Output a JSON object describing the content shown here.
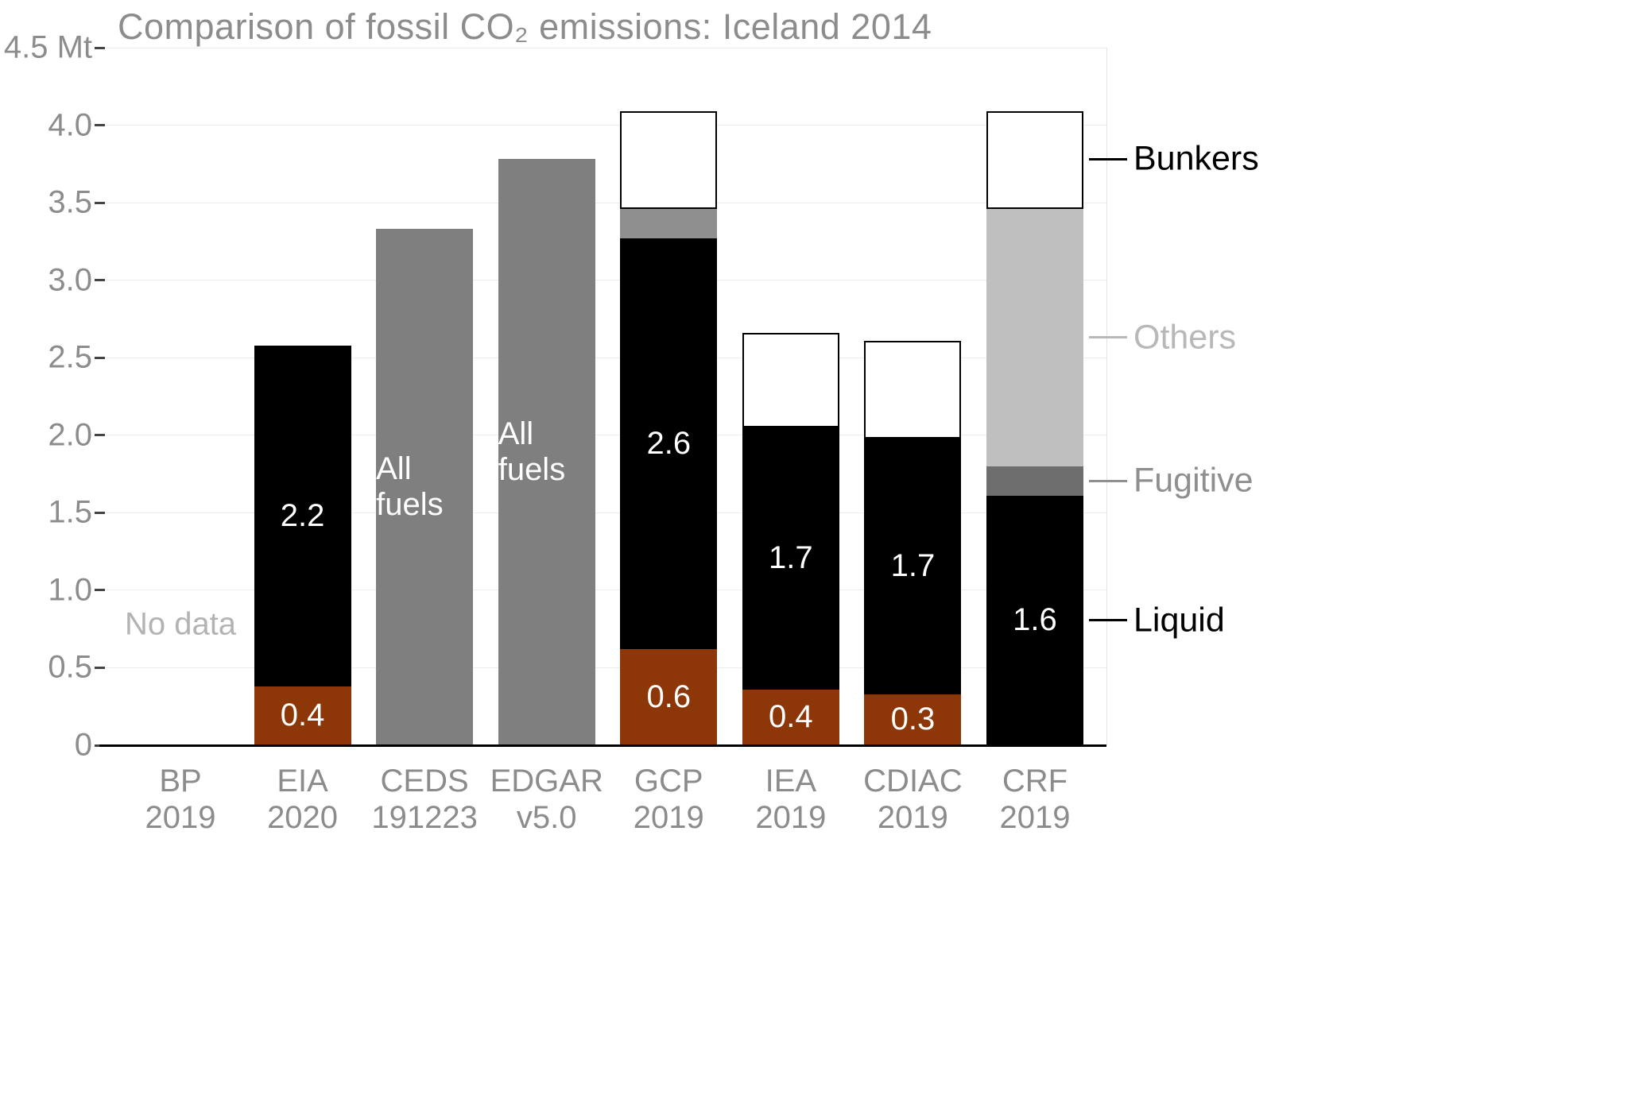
{
  "chart_data": {
    "type": "bar",
    "stacked": true,
    "title": "Comparison of fossil CO₂ emissions: Iceland 2014",
    "unit": "Mt",
    "ylim": [
      0,
      4.5
    ],
    "grid": true,
    "yticks": [
      {
        "value": 0,
        "label": "0"
      },
      {
        "value": 0.5,
        "label": "0.5"
      },
      {
        "value": 1.0,
        "label": "1.0"
      },
      {
        "value": 1.5,
        "label": "1.5"
      },
      {
        "value": 2.0,
        "label": "2.0"
      },
      {
        "value": 2.5,
        "label": "2.5"
      },
      {
        "value": 3.0,
        "label": "3.0"
      },
      {
        "value": 3.5,
        "label": "3.5"
      },
      {
        "value": 4.0,
        "label": "4.0"
      },
      {
        "value": 4.5,
        "label": "4.5 Mt"
      }
    ],
    "categories": [
      {
        "name": "BP",
        "year": "2019"
      },
      {
        "name": "EIA",
        "year": "2020"
      },
      {
        "name": "CEDS",
        "year": "191223"
      },
      {
        "name": "EDGAR",
        "year": "v5.0"
      },
      {
        "name": "GCP",
        "year": "2019"
      },
      {
        "name": "IEA",
        "year": "2019"
      },
      {
        "name": "CDIAC",
        "year": "2019"
      },
      {
        "name": "CRF",
        "year": "2019"
      }
    ],
    "bars": [
      {
        "category": "BP 2019",
        "segments": [],
        "annotation": {
          "text": "No data",
          "value": 0.78,
          "color": "#b3b3b3"
        }
      },
      {
        "category": "EIA 2020",
        "segments": [
          {
            "name": "brown",
            "color": "#8d3608",
            "from": 0,
            "to": 0.38,
            "label": "0.4",
            "label_color": "#ffffff"
          },
          {
            "name": "liquid",
            "color": "#000000",
            "from": 0.38,
            "to": 2.58,
            "label": "2.2",
            "label_color": "#ffffff"
          }
        ]
      },
      {
        "category": "CEDS 191223",
        "segments": [
          {
            "name": "all-fuels",
            "color": "#7f7f7f",
            "from": 0,
            "to": 3.33,
            "label": "All fuels",
            "label_color": "#ffffff"
          }
        ]
      },
      {
        "category": "EDGAR v5.0",
        "segments": [
          {
            "name": "all-fuels",
            "color": "#7f7f7f",
            "from": 0,
            "to": 3.78,
            "label": "All fuels",
            "label_color": "#ffffff"
          }
        ]
      },
      {
        "category": "GCP 2019",
        "segments": [
          {
            "name": "brown",
            "color": "#8d3608",
            "from": 0,
            "to": 0.62,
            "label": "0.6",
            "label_color": "#ffffff"
          },
          {
            "name": "liquid",
            "color": "#000000",
            "from": 0.62,
            "to": 3.27,
            "label": "2.6",
            "label_color": "#ffffff"
          },
          {
            "name": "others",
            "color": "#8f8f8f",
            "from": 3.27,
            "to": 3.46
          },
          {
            "name": "bunkers",
            "color": "#ffffff",
            "border": "#000000",
            "from": 3.46,
            "to": 4.09
          }
        ]
      },
      {
        "category": "IEA 2019",
        "segments": [
          {
            "name": "brown",
            "color": "#8d3608",
            "from": 0,
            "to": 0.36,
            "label": "0.4",
            "label_color": "#ffffff"
          },
          {
            "name": "liquid",
            "color": "#000000",
            "from": 0.36,
            "to": 2.05,
            "label": "1.7",
            "label_color": "#ffffff"
          },
          {
            "name": "bunkers",
            "color": "#ffffff",
            "border": "#000000",
            "from": 2.05,
            "to": 2.66
          }
        ]
      },
      {
        "category": "CDIAC 2019",
        "segments": [
          {
            "name": "brown",
            "color": "#8d3608",
            "from": 0,
            "to": 0.33,
            "label": "0.3",
            "label_color": "#ffffff"
          },
          {
            "name": "liquid",
            "color": "#000000",
            "from": 0.33,
            "to": 1.98,
            "label": "1.7",
            "label_color": "#ffffff"
          },
          {
            "name": "bunkers",
            "color": "#ffffff",
            "border": "#000000",
            "from": 1.98,
            "to": 2.61
          }
        ]
      },
      {
        "category": "CRF 2019",
        "segments": [
          {
            "name": "liquid",
            "color": "#000000",
            "from": 0,
            "to": 1.61,
            "label": "1.6",
            "label_color": "#ffffff"
          },
          {
            "name": "fugitive",
            "color": "#6e6e6e",
            "from": 1.61,
            "to": 1.8
          },
          {
            "name": "others",
            "color": "#bfbfbf",
            "from": 1.8,
            "to": 3.46
          },
          {
            "name": "bunkers",
            "color": "#ffffff",
            "border": "#000000",
            "from": 3.46,
            "to": 4.09
          }
        ]
      }
    ],
    "right_labels": [
      {
        "text": "Bunkers",
        "value": 3.78,
        "color": "#000000",
        "line_color": "#000000"
      },
      {
        "text": "Others",
        "value": 2.63,
        "color": "#b8b8b8",
        "line_color": "#b8b8b8"
      },
      {
        "text": "Fugitive",
        "value": 1.705,
        "color": "#8f8f8f",
        "line_color": "#8f8f8f"
      },
      {
        "text": "Liquid",
        "value": 0.805,
        "color": "#000000",
        "line_color": "#000000"
      }
    ],
    "colors": {
      "title": "#8c8c8c",
      "axis_text": "#8c8c8c",
      "gridline": "#ededed",
      "baseline": "#000000"
    }
  }
}
